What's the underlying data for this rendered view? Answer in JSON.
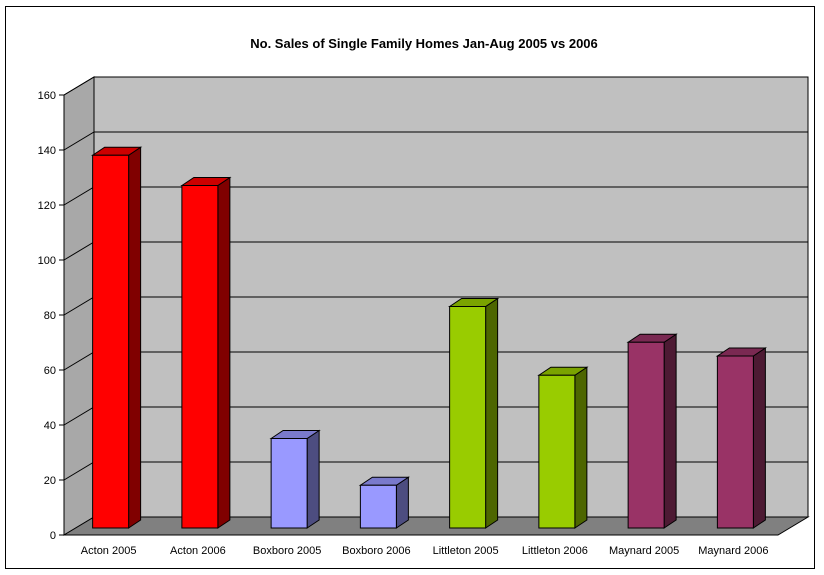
{
  "chart_data": {
    "type": "bar",
    "title": "No. Sales of Single Family Homes Jan-Aug 2005 vs 2006",
    "categories": [
      "Acton 2005",
      "Acton 2006",
      "Boxboro 2005",
      "Boxboro 2006",
      "Littleton 2005",
      "Littleton 2006",
      "Maynard 2005",
      "Maynard 2006"
    ],
    "values": [
      141,
      130,
      38,
      21,
      86,
      61,
      73,
      68
    ],
    "colors": {
      "front": [
        "#ff0000",
        "#ff0000",
        "#9999ff",
        "#9999ff",
        "#99cc00",
        "#99cc00",
        "#993366",
        "#993366"
      ],
      "side": [
        "#800000",
        "#800000",
        "#4d4d80",
        "#4d4d80",
        "#4d6600",
        "#4d6600",
        "#4d1a33",
        "#4d1a33"
      ],
      "top": [
        "#cc0000",
        "#cc0000",
        "#7a7acc",
        "#7a7acc",
        "#7aa300",
        "#7aa300",
        "#7a2952",
        "#7a2952"
      ]
    },
    "yticks": [
      "0",
      "20",
      "40",
      "60",
      "80",
      "100",
      "120",
      "140",
      "160"
    ],
    "ylim": [
      0,
      160
    ],
    "grid": true,
    "legend": "none",
    "wall_color": "#c0c0c0",
    "floor_color": "#808080"
  }
}
